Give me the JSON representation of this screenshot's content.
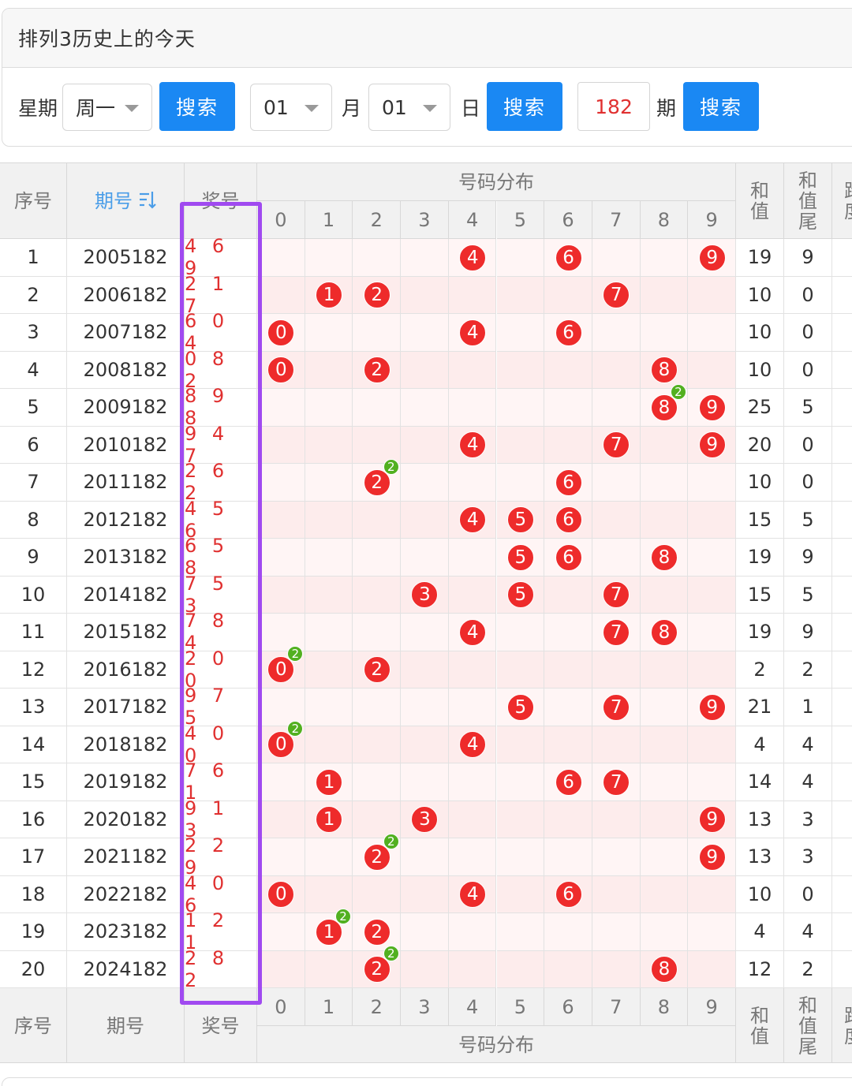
{
  "panel": {
    "title": "排列3历史上的今天",
    "week_label": "星期",
    "week_value": "周一",
    "search1": "搜索",
    "month_value": "01",
    "month_label": "月",
    "day_value": "01",
    "day_label": "日",
    "search2": "搜索",
    "issue_value": "182",
    "issue_label": "期",
    "search3": "搜索"
  },
  "table": {
    "col_seq": "序号",
    "col_issue": "期号",
    "sort_icon": "sort-icon",
    "col_prize": "奖号",
    "col_distribution": "号码分布",
    "digits": [
      "0",
      "1",
      "2",
      "3",
      "4",
      "5",
      "6",
      "7",
      "8",
      "9"
    ],
    "col_sum": "和值",
    "col_sum_tail": "和值尾",
    "col_span": "跨度",
    "footer_issue": "期号",
    "rows": [
      {
        "seq": "1",
        "issue": "2005182",
        "prize": "469",
        "sum": "19",
        "tail": "9"
      },
      {
        "seq": "2",
        "issue": "2006182",
        "prize": "217",
        "sum": "10",
        "tail": "0"
      },
      {
        "seq": "3",
        "issue": "2007182",
        "prize": "604",
        "sum": "10",
        "tail": "0"
      },
      {
        "seq": "4",
        "issue": "2008182",
        "prize": "082",
        "sum": "10",
        "tail": "0"
      },
      {
        "seq": "5",
        "issue": "2009182",
        "prize": "898",
        "sum": "25",
        "tail": "5"
      },
      {
        "seq": "6",
        "issue": "2010182",
        "prize": "947",
        "sum": "20",
        "tail": "0"
      },
      {
        "seq": "7",
        "issue": "2011182",
        "prize": "262",
        "sum": "10",
        "tail": "0"
      },
      {
        "seq": "8",
        "issue": "2012182",
        "prize": "456",
        "sum": "15",
        "tail": "5"
      },
      {
        "seq": "9",
        "issue": "2013182",
        "prize": "658",
        "sum": "19",
        "tail": "9"
      },
      {
        "seq": "10",
        "issue": "2014182",
        "prize": "753",
        "sum": "15",
        "tail": "5"
      },
      {
        "seq": "11",
        "issue": "2015182",
        "prize": "784",
        "sum": "19",
        "tail": "9"
      },
      {
        "seq": "12",
        "issue": "2016182",
        "prize": "200",
        "sum": "2",
        "tail": "2"
      },
      {
        "seq": "13",
        "issue": "2017182",
        "prize": "975",
        "sum": "21",
        "tail": "1"
      },
      {
        "seq": "14",
        "issue": "2018182",
        "prize": "400",
        "sum": "4",
        "tail": "4"
      },
      {
        "seq": "15",
        "issue": "2019182",
        "prize": "761",
        "sum": "14",
        "tail": "4"
      },
      {
        "seq": "16",
        "issue": "2020182",
        "prize": "913",
        "sum": "13",
        "tail": "3"
      },
      {
        "seq": "17",
        "issue": "2021182",
        "prize": "229",
        "sum": "13",
        "tail": "3"
      },
      {
        "seq": "18",
        "issue": "2022182",
        "prize": "406",
        "sum": "10",
        "tail": "0"
      },
      {
        "seq": "19",
        "issue": "2023182",
        "prize": "121",
        "sum": "4",
        "tail": "4"
      },
      {
        "seq": "20",
        "issue": "2024182",
        "prize": "282",
        "sum": "12",
        "tail": "2"
      }
    ]
  },
  "colors": {
    "accent": "#1a88f3",
    "ball": "#ee2b2b",
    "repeat_badge": "#52b020",
    "highlight_box": "#a04af0"
  }
}
